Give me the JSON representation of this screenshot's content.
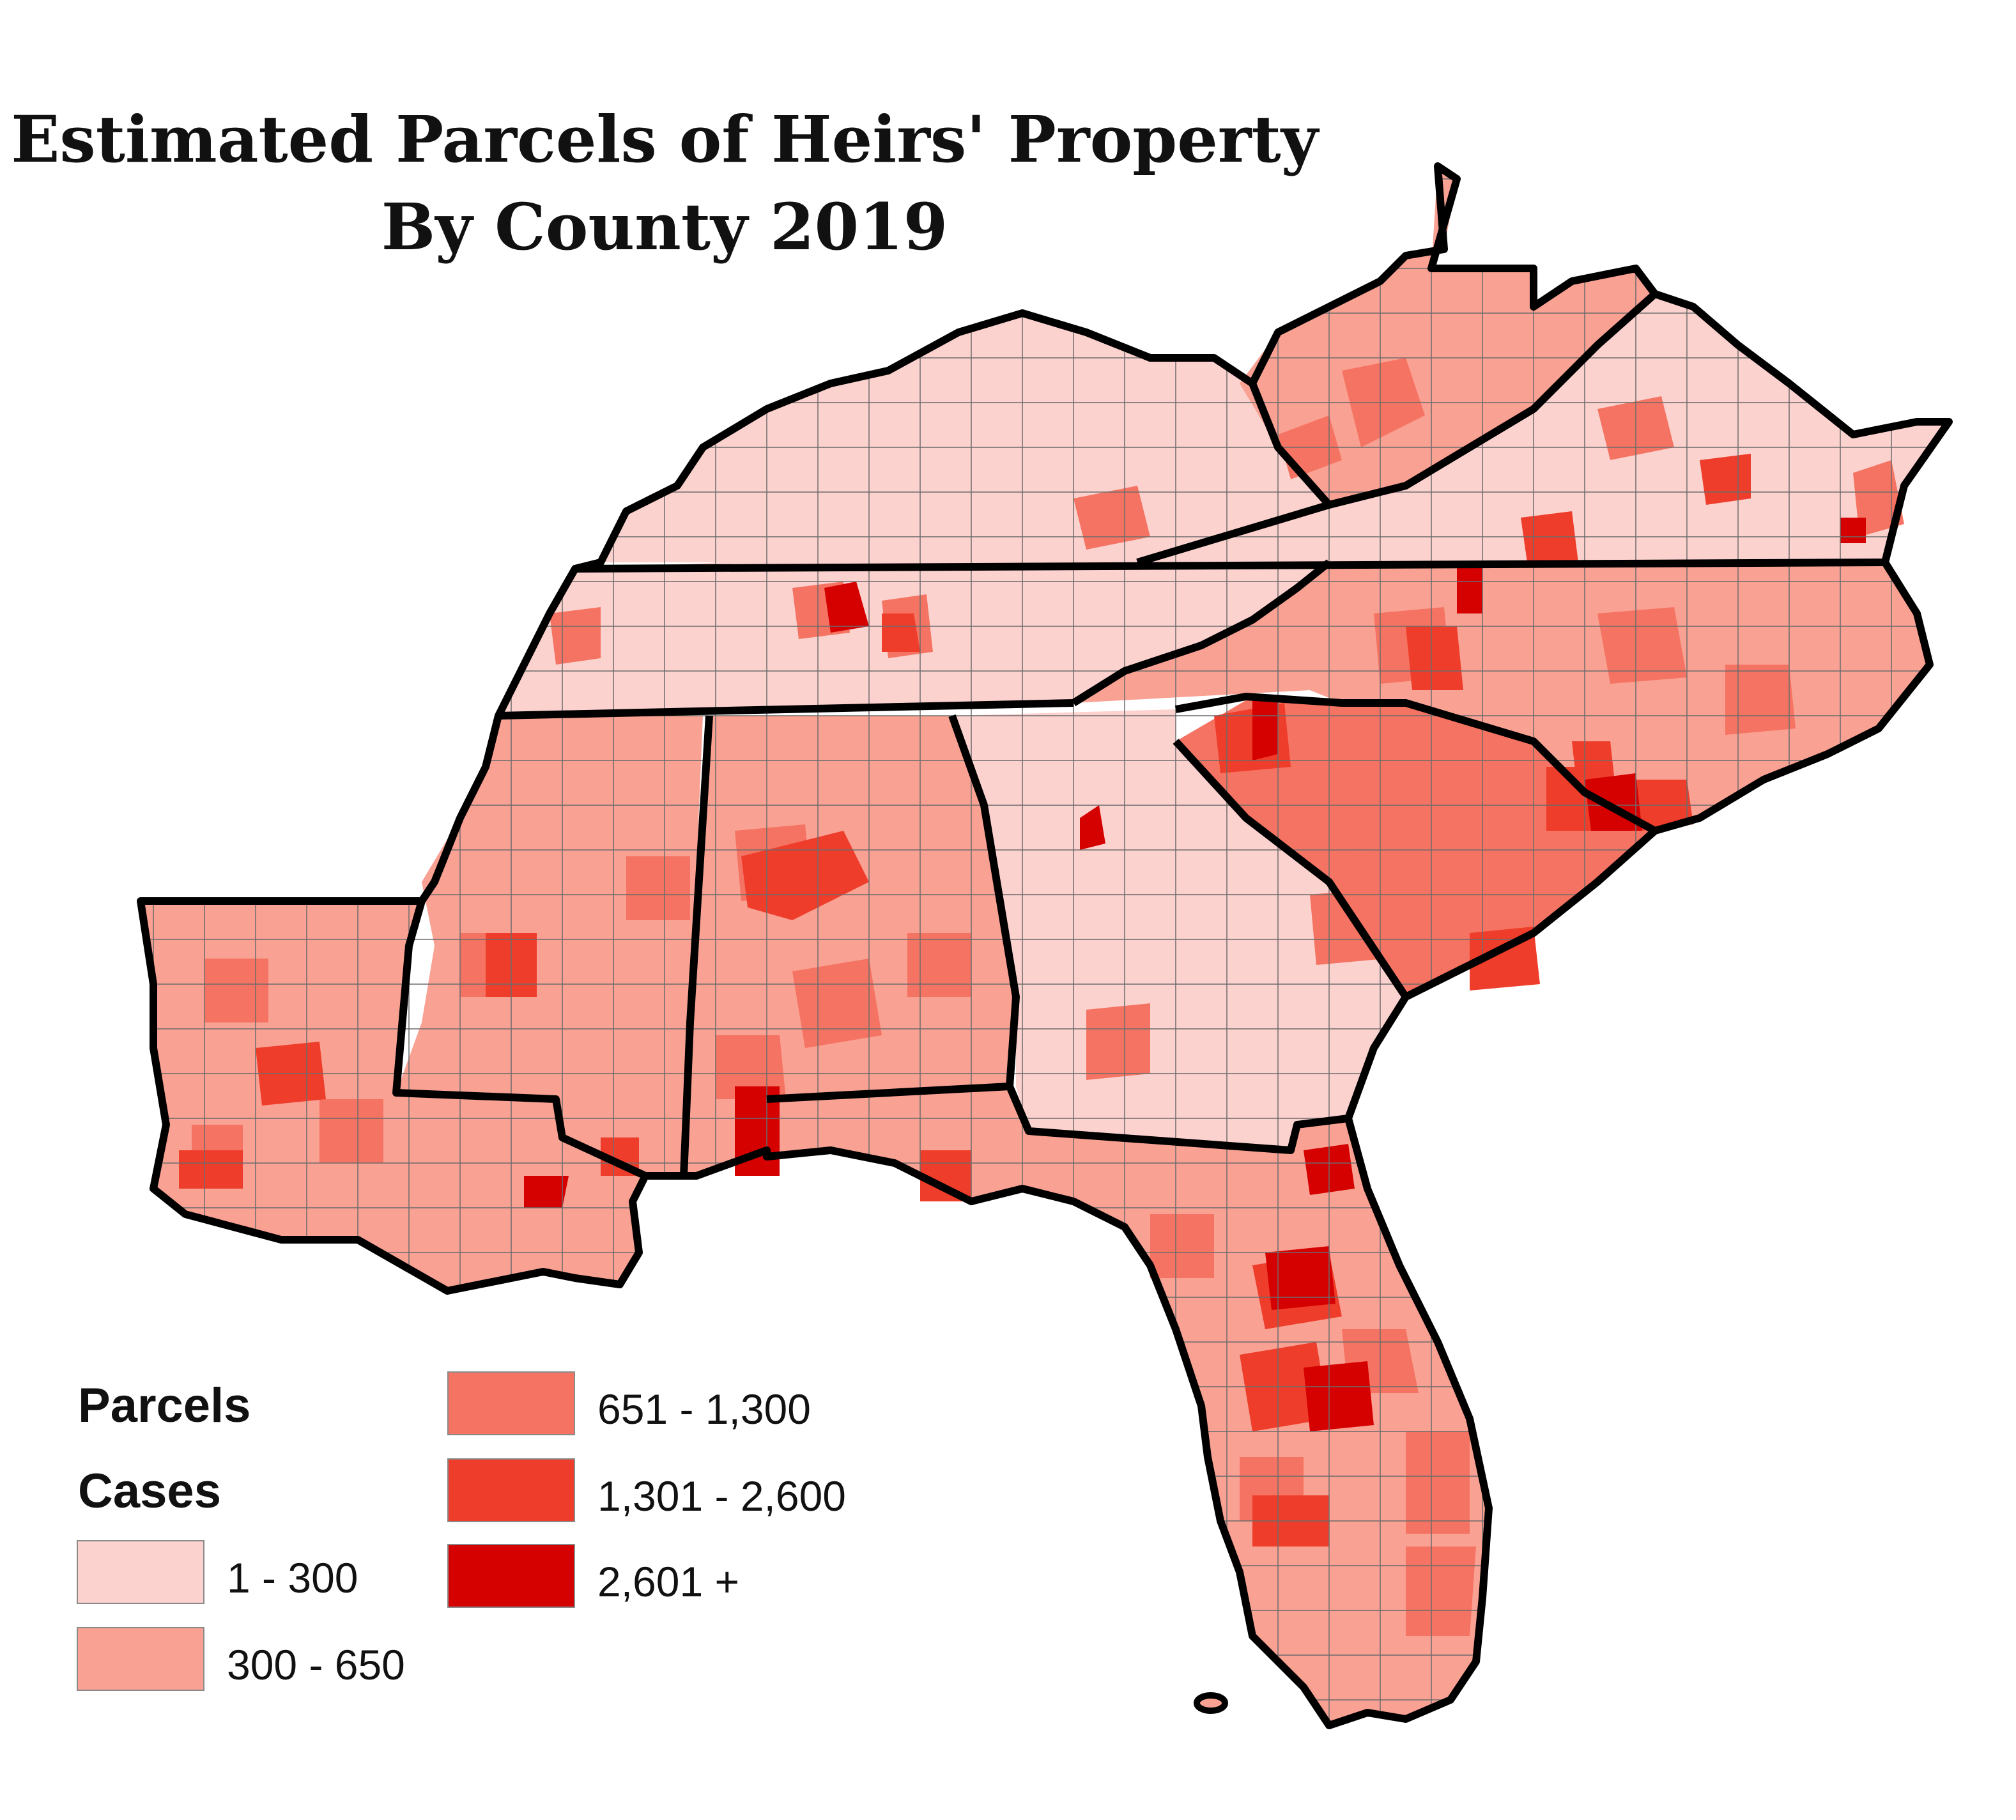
{
  "title": {
    "line1": "Estimated Parcels of Heirs' Property",
    "line2": "By County 2019"
  },
  "legend": {
    "heading1": "Parcels",
    "heading2": "Cases",
    "classes": [
      {
        "label": "1 - 300",
        "color": "#fcd2cf"
      },
      {
        "label": "300 - 650",
        "color": "#f9a193"
      },
      {
        "label": "651 - 1,300",
        "color": "#f57362"
      },
      {
        "label": "1,301 - 2,600",
        "color": "#ee3d2a"
      },
      {
        "label": "2,601 +",
        "color": "#d50000"
      }
    ]
  },
  "map": {
    "region_outline_color": "#000000",
    "county_border_color": "#6b6b6b"
  }
}
